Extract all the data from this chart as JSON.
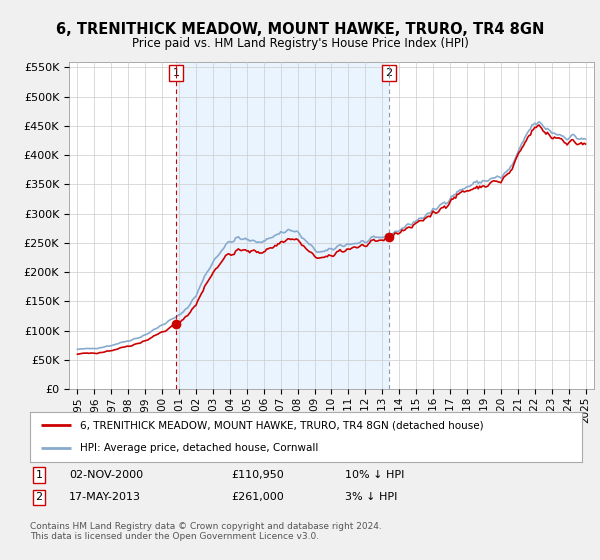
{
  "title": "6, TRENITHICK MEADOW, MOUNT HAWKE, TRURO, TR4 8GN",
  "subtitle": "Price paid vs. HM Land Registry's House Price Index (HPI)",
  "legend_label_red": "6, TRENITHICK MEADOW, MOUNT HAWKE, TRURO, TR4 8GN (detached house)",
  "legend_label_blue": "HPI: Average price, detached house, Cornwall",
  "footnote": "Contains HM Land Registry data © Crown copyright and database right 2024.\nThis data is licensed under the Open Government Licence v3.0.",
  "transaction1_date": "02-NOV-2000",
  "transaction1_price": "£110,950",
  "transaction1_hpi": "10% ↓ HPI",
  "transaction2_date": "17-MAY-2013",
  "transaction2_price": "£261,000",
  "transaction2_hpi": "3% ↓ HPI",
  "color_red": "#cc0000",
  "color_blue": "#88aacc",
  "color_vline1": "#cc0000",
  "color_vline2": "#8899aa",
  "color_fill": "#ddeeff",
  "ylim_min": 0,
  "ylim_max": 560000,
  "yticks": [
    0,
    50000,
    100000,
    150000,
    200000,
    250000,
    300000,
    350000,
    400000,
    450000,
    500000,
    550000
  ],
  "transaction1_x": 2000.83,
  "transaction1_y": 110950,
  "transaction2_x": 2013.38,
  "transaction2_y": 261000,
  "bg_color": "#f0f0f0",
  "plot_bg_color": "#ffffff",
  "xmin": 1995.0,
  "xmax": 2025.0
}
